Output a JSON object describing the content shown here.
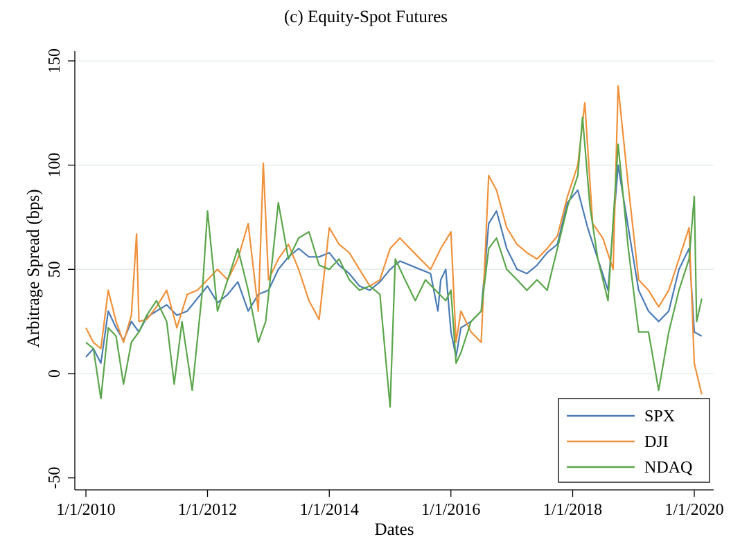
{
  "chart_data": {
    "type": "line",
    "title": "(c) Equity-Spot Futures",
    "xlabel": "Dates",
    "ylabel": "Arbitrage Spread (bps)",
    "ylim": [
      -50,
      150
    ],
    "yticks": [
      -50,
      0,
      50,
      100,
      150
    ],
    "xlim": [
      "2010-01-01",
      "2020-03-01"
    ],
    "xticks": [
      {
        "date": "2010-01-01",
        "label": "1/1/2010"
      },
      {
        "date": "2012-01-01",
        "label": "1/1/2012"
      },
      {
        "date": "2014-01-01",
        "label": "1/1/2014"
      },
      {
        "date": "2016-01-01",
        "label": "1/1/2016"
      },
      {
        "date": "2018-01-01",
        "label": "1/1/2018"
      },
      {
        "date": "2020-01-01",
        "label": "1/1/2020"
      }
    ],
    "grid": "horizontal",
    "legend": "bottom-right",
    "series": [
      {
        "name": "SPX",
        "color": "#4a7bb5",
        "points": [
          [
            "2010-01-01",
            8
          ],
          [
            "2010-02-15",
            12
          ],
          [
            "2010-04-01",
            5
          ],
          [
            "2010-05-15",
            30
          ],
          [
            "2010-07-01",
            22
          ],
          [
            "2010-08-15",
            16
          ],
          [
            "2010-10-01",
            25
          ],
          [
            "2010-11-15",
            20
          ],
          [
            "2011-01-01",
            27
          ],
          [
            "2011-03-01",
            30
          ],
          [
            "2011-05-01",
            33
          ],
          [
            "2011-07-01",
            28
          ],
          [
            "2011-09-01",
            30
          ],
          [
            "2011-11-01",
            36
          ],
          [
            "2012-01-01",
            42
          ],
          [
            "2012-03-01",
            34
          ],
          [
            "2012-05-01",
            38
          ],
          [
            "2012-07-01",
            44
          ],
          [
            "2012-09-01",
            30
          ],
          [
            "2012-11-01",
            38
          ],
          [
            "2013-01-01",
            40
          ],
          [
            "2013-03-01",
            50
          ],
          [
            "2013-05-01",
            56
          ],
          [
            "2013-07-01",
            60
          ],
          [
            "2013-09-01",
            56
          ],
          [
            "2013-11-01",
            56
          ],
          [
            "2014-01-01",
            58
          ],
          [
            "2014-03-01",
            52
          ],
          [
            "2014-05-01",
            48
          ],
          [
            "2014-07-01",
            42
          ],
          [
            "2014-09-01",
            40
          ],
          [
            "2014-11-01",
            44
          ],
          [
            "2015-01-01",
            50
          ],
          [
            "2015-03-01",
            54
          ],
          [
            "2015-05-01",
            52
          ],
          [
            "2015-07-01",
            50
          ],
          [
            "2015-09-01",
            48
          ],
          [
            "2015-10-15",
            30
          ],
          [
            "2015-11-01",
            45
          ],
          [
            "2015-12-01",
            50
          ],
          [
            "2016-01-01",
            20
          ],
          [
            "2016-02-01",
            8
          ],
          [
            "2016-03-01",
            22
          ],
          [
            "2016-05-01",
            25
          ],
          [
            "2016-07-01",
            30
          ],
          [
            "2016-08-15",
            72
          ],
          [
            "2016-10-01",
            78
          ],
          [
            "2016-12-01",
            60
          ],
          [
            "2017-02-01",
            50
          ],
          [
            "2017-04-01",
            48
          ],
          [
            "2017-06-01",
            52
          ],
          [
            "2017-08-01",
            58
          ],
          [
            "2017-10-01",
            62
          ],
          [
            "2017-12-01",
            82
          ],
          [
            "2018-02-01",
            88
          ],
          [
            "2018-04-01",
            70
          ],
          [
            "2018-06-01",
            55
          ],
          [
            "2018-08-01",
            40
          ],
          [
            "2018-10-01",
            100
          ],
          [
            "2018-12-01",
            70
          ],
          [
            "2019-02-01",
            40
          ],
          [
            "2019-04-01",
            30
          ],
          [
            "2019-06-01",
            25
          ],
          [
            "2019-08-01",
            30
          ],
          [
            "2019-10-01",
            50
          ],
          [
            "2019-12-01",
            60
          ],
          [
            "2020-01-01",
            20
          ],
          [
            "2020-02-15",
            18
          ]
        ]
      },
      {
        "name": "DJI",
        "color": "#f0913a",
        "points": [
          [
            "2010-01-01",
            22
          ],
          [
            "2010-02-15",
            15
          ],
          [
            "2010-04-01",
            12
          ],
          [
            "2010-05-15",
            40
          ],
          [
            "2010-07-01",
            25
          ],
          [
            "2010-08-15",
            15
          ],
          [
            "2010-10-01",
            28
          ],
          [
            "2010-11-01",
            67
          ],
          [
            "2010-11-15",
            25
          ],
          [
            "2011-01-01",
            26
          ],
          [
            "2011-03-01",
            32
          ],
          [
            "2011-05-01",
            40
          ],
          [
            "2011-07-01",
            22
          ],
          [
            "2011-09-01",
            38
          ],
          [
            "2011-11-01",
            40
          ],
          [
            "2012-01-01",
            45
          ],
          [
            "2012-03-01",
            50
          ],
          [
            "2012-05-01",
            45
          ],
          [
            "2012-07-01",
            55
          ],
          [
            "2012-09-01",
            72
          ],
          [
            "2012-11-01",
            30
          ],
          [
            "2012-12-01",
            101
          ],
          [
            "2013-01-01",
            45
          ],
          [
            "2013-03-01",
            55
          ],
          [
            "2013-05-01",
            62
          ],
          [
            "2013-07-01",
            50
          ],
          [
            "2013-09-01",
            35
          ],
          [
            "2013-11-01",
            26
          ],
          [
            "2014-01-01",
            70
          ],
          [
            "2014-03-01",
            62
          ],
          [
            "2014-05-01",
            58
          ],
          [
            "2014-07-01",
            50
          ],
          [
            "2014-09-01",
            42
          ],
          [
            "2014-11-01",
            45
          ],
          [
            "2015-01-01",
            60
          ],
          [
            "2015-03-01",
            65
          ],
          [
            "2015-05-01",
            60
          ],
          [
            "2015-07-01",
            55
          ],
          [
            "2015-09-01",
            50
          ],
          [
            "2015-11-01",
            60
          ],
          [
            "2016-01-01",
            68
          ],
          [
            "2016-02-01",
            15
          ],
          [
            "2016-03-01",
            30
          ],
          [
            "2016-05-01",
            20
          ],
          [
            "2016-07-01",
            15
          ],
          [
            "2016-08-15",
            95
          ],
          [
            "2016-10-01",
            88
          ],
          [
            "2016-12-01",
            70
          ],
          [
            "2017-02-01",
            62
          ],
          [
            "2017-04-01",
            58
          ],
          [
            "2017-06-01",
            55
          ],
          [
            "2017-08-01",
            60
          ],
          [
            "2017-10-01",
            66
          ],
          [
            "2017-12-01",
            85
          ],
          [
            "2018-02-01",
            100
          ],
          [
            "2018-03-15",
            130
          ],
          [
            "2018-05-01",
            72
          ],
          [
            "2018-07-01",
            65
          ],
          [
            "2018-09-01",
            50
          ],
          [
            "2018-10-01",
            138
          ],
          [
            "2018-12-01",
            90
          ],
          [
            "2019-02-01",
            45
          ],
          [
            "2019-04-01",
            40
          ],
          [
            "2019-06-01",
            32
          ],
          [
            "2019-08-01",
            40
          ],
          [
            "2019-10-01",
            55
          ],
          [
            "2019-12-01",
            70
          ],
          [
            "2020-01-01",
            5
          ],
          [
            "2020-02-15",
            -10
          ]
        ]
      },
      {
        "name": "NDAQ",
        "color": "#5aa64a",
        "points": [
          [
            "2010-01-01",
            15
          ],
          [
            "2010-02-15",
            12
          ],
          [
            "2010-04-01",
            -12
          ],
          [
            "2010-05-15",
            22
          ],
          [
            "2010-07-01",
            18
          ],
          [
            "2010-08-15",
            -5
          ],
          [
            "2010-10-01",
            15
          ],
          [
            "2010-11-15",
            20
          ],
          [
            "2011-01-01",
            28
          ],
          [
            "2011-03-01",
            35
          ],
          [
            "2011-05-01",
            25
          ],
          [
            "2011-06-15",
            -5
          ],
          [
            "2011-08-01",
            25
          ],
          [
            "2011-10-01",
            -8
          ],
          [
            "2011-12-01",
            40
          ],
          [
            "2012-01-01",
            78
          ],
          [
            "2012-03-01",
            30
          ],
          [
            "2012-05-01",
            45
          ],
          [
            "2012-07-01",
            60
          ],
          [
            "2012-09-01",
            40
          ],
          [
            "2012-11-01",
            15
          ],
          [
            "2012-12-15",
            25
          ],
          [
            "2013-01-15",
            48
          ],
          [
            "2013-03-01",
            82
          ],
          [
            "2013-05-01",
            55
          ],
          [
            "2013-07-01",
            65
          ],
          [
            "2013-09-01",
            68
          ],
          [
            "2013-11-01",
            52
          ],
          [
            "2014-01-01",
            50
          ],
          [
            "2014-03-01",
            55
          ],
          [
            "2014-05-01",
            45
          ],
          [
            "2014-07-01",
            40
          ],
          [
            "2014-09-01",
            42
          ],
          [
            "2014-11-01",
            38
          ],
          [
            "2015-01-01",
            -16
          ],
          [
            "2015-02-01",
            55
          ],
          [
            "2015-04-01",
            45
          ],
          [
            "2015-06-01",
            35
          ],
          [
            "2015-08-01",
            45
          ],
          [
            "2015-10-01",
            40
          ],
          [
            "2015-12-01",
            35
          ],
          [
            "2016-01-01",
            40
          ],
          [
            "2016-02-01",
            5
          ],
          [
            "2016-03-01",
            10
          ],
          [
            "2016-05-01",
            25
          ],
          [
            "2016-07-01",
            30
          ],
          [
            "2016-08-15",
            60
          ],
          [
            "2016-10-01",
            65
          ],
          [
            "2016-12-01",
            50
          ],
          [
            "2017-02-01",
            45
          ],
          [
            "2017-04-01",
            40
          ],
          [
            "2017-06-01",
            45
          ],
          [
            "2017-08-01",
            40
          ],
          [
            "2017-10-01",
            60
          ],
          [
            "2017-12-01",
            80
          ],
          [
            "2018-02-01",
            95
          ],
          [
            "2018-03-01",
            123
          ],
          [
            "2018-04-15",
            80
          ],
          [
            "2018-06-01",
            55
          ],
          [
            "2018-08-01",
            35
          ],
          [
            "2018-10-01",
            110
          ],
          [
            "2018-12-01",
            60
          ],
          [
            "2019-02-01",
            20
          ],
          [
            "2019-04-01",
            20
          ],
          [
            "2019-06-01",
            -8
          ],
          [
            "2019-08-01",
            20
          ],
          [
            "2019-10-01",
            40
          ],
          [
            "2019-12-01",
            55
          ],
          [
            "2020-01-01",
            85
          ],
          [
            "2020-01-15",
            25
          ],
          [
            "2020-02-15",
            36
          ]
        ]
      }
    ]
  }
}
